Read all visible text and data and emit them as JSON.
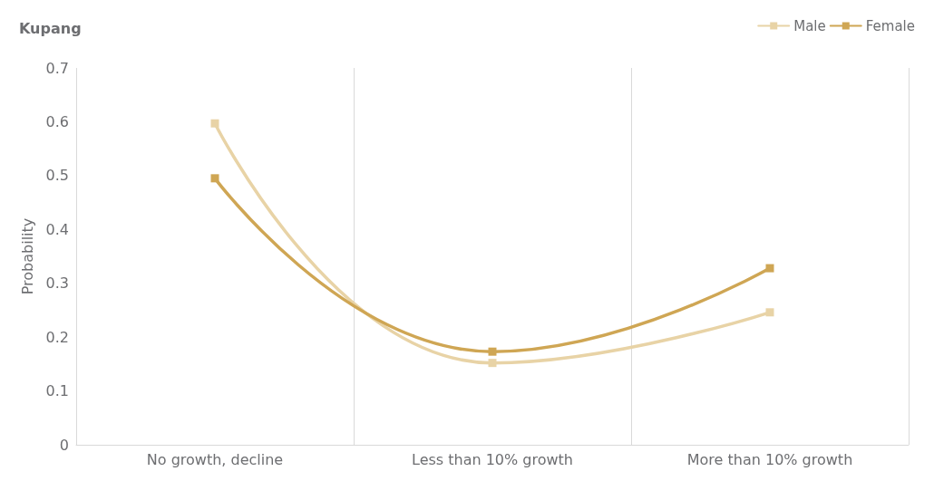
{
  "chart_data": {
    "type": "line",
    "title": "Kupang",
    "ylabel": "Probability",
    "categories": [
      "No growth, decline",
      "Less than 10% growth",
      "More than 10% growth"
    ],
    "series": [
      {
        "name": "Male",
        "color": "#e8d3a6",
        "values": [
          0.597,
          0.152,
          0.246
        ]
      },
      {
        "name": "Female",
        "color": "#cfa654",
        "values": [
          0.495,
          0.173,
          0.328
        ]
      }
    ],
    "ylim": [
      0,
      0.7
    ],
    "yticks": [
      0,
      0.1,
      0.2,
      0.3,
      0.4,
      0.5,
      0.6,
      0.7
    ],
    "grid": "x",
    "legend": "top right",
    "marker": "square",
    "line_style": "solid"
  }
}
